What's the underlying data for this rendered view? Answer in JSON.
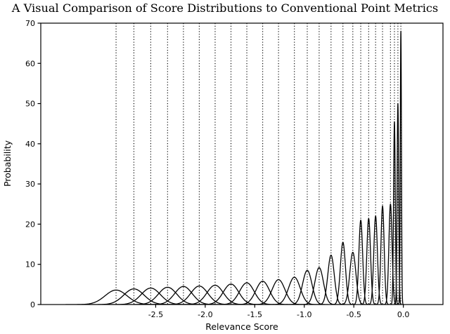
{
  "figure": {
    "title": "A Visual Comparison of Score Distributions to Conventional Point Metrics"
  },
  "chart_data": {
    "type": "line",
    "title": "A Visual Comparison of Score Distributions to Conventional Point Metrics",
    "xlabel": "Relevance Score",
    "ylabel": "Probability",
    "xlim": [
      -3.66,
      0.4
    ],
    "ylim": [
      0,
      70
    ],
    "grid": false,
    "legend": "none",
    "xticks": {
      "values": [
        -2.5,
        -2.0,
        -1.5,
        -1.0,
        -0.5,
        0.0
      ],
      "labels": [
        "-2.5",
        "-2.0",
        "-1.5",
        "-1.0",
        "-0.5",
        "0.0"
      ]
    },
    "yticks": {
      "values": [
        0,
        10,
        20,
        30,
        40,
        50,
        60,
        70
      ],
      "labels": [
        "0",
        "10",
        "20",
        "30",
        "40",
        "50",
        "60",
        "70"
      ]
    },
    "distributions": [
      {
        "mean": -2.9,
        "peak": 3.6
      },
      {
        "mean": -2.72,
        "peak": 3.9
      },
      {
        "mean": -2.55,
        "peak": 4.1
      },
      {
        "mean": -2.38,
        "peak": 4.3
      },
      {
        "mean": -2.22,
        "peak": 4.5
      },
      {
        "mean": -2.06,
        "peak": 4.6
      },
      {
        "mean": -1.9,
        "peak": 4.8
      },
      {
        "mean": -1.74,
        "peak": 5.1
      },
      {
        "mean": -1.58,
        "peak": 5.4
      },
      {
        "mean": -1.42,
        "peak": 5.8
      },
      {
        "mean": -1.26,
        "peak": 6.2
      },
      {
        "mean": -1.1,
        "peak": 6.8
      },
      {
        "mean": -0.97,
        "peak": 8.5
      },
      {
        "mean": -0.85,
        "peak": 9.2
      },
      {
        "mean": -0.73,
        "peak": 12.3
      },
      {
        "mean": -0.61,
        "peak": 15.5
      },
      {
        "mean": -0.51,
        "peak": 13.0
      },
      {
        "mean": -0.43,
        "peak": 21.0
      },
      {
        "mean": -0.35,
        "peak": 21.4
      },
      {
        "mean": -0.28,
        "peak": 22.0
      },
      {
        "mean": -0.21,
        "peak": 24.5
      },
      {
        "mean": -0.13,
        "peak": 25.0
      },
      {
        "mean": -0.09,
        "peak": 45.5
      },
      {
        "mean": -0.055,
        "peak": 50.0
      },
      {
        "mean": -0.025,
        "peak": 68.0
      }
    ],
    "point_metric_lines": [
      -2.9,
      -2.72,
      -2.55,
      -2.38,
      -2.22,
      -2.06,
      -1.9,
      -1.74,
      -1.58,
      -1.42,
      -1.26,
      -1.1,
      -0.97,
      -0.85,
      -0.73,
      -0.61,
      -0.51,
      -0.43,
      -0.35,
      -0.28,
      -0.21,
      -0.13,
      -0.09,
      -0.055,
      -0.025
    ],
    "colors": {
      "curve": "#000000",
      "point_metric_line": "#000000",
      "axis": "#000000",
      "background": "#ffffff"
    }
  }
}
